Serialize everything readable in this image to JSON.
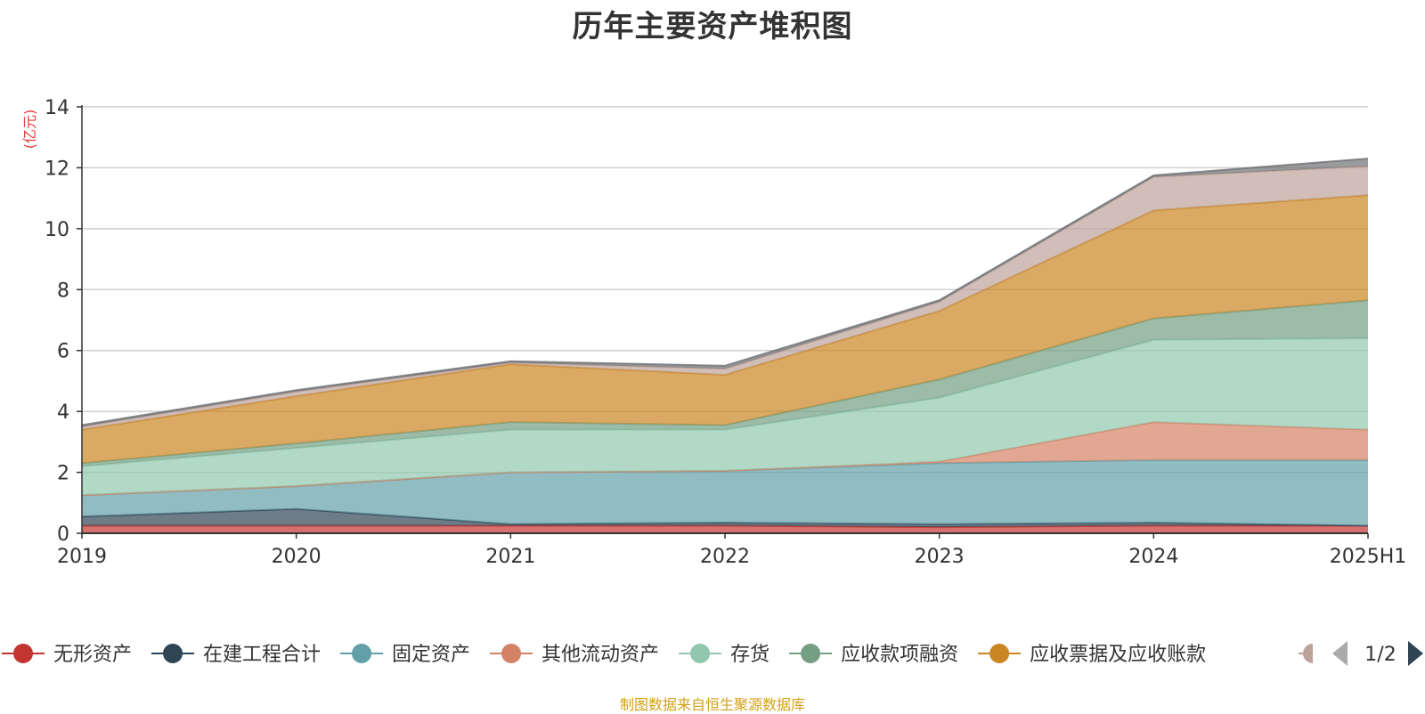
{
  "title": "历年主要资产堆积图",
  "footer": "制图数据来自恒生聚源数据库",
  "chart_data": {
    "type": "area",
    "stacked": true,
    "unit_label": "(亿元)",
    "categories": [
      "2019",
      "2020",
      "2021",
      "2022",
      "2023",
      "2024",
      "2025H1"
    ],
    "ylim": [
      0,
      14
    ],
    "yticks": [
      0,
      2,
      4,
      6,
      8,
      10,
      12,
      14
    ],
    "grid": true,
    "series": [
      {
        "name": "无形资产",
        "color": "#c23531",
        "values": [
          0.25,
          0.25,
          0.25,
          0.25,
          0.2,
          0.25,
          0.25
        ]
      },
      {
        "name": "在建工程合计",
        "color": "#2f4554",
        "values": [
          0.3,
          0.55,
          0.05,
          0.1,
          0.1,
          0.1,
          0.0
        ]
      },
      {
        "name": "固定资产",
        "color": "#61a0a8",
        "values": [
          0.7,
          0.75,
          1.7,
          1.7,
          2.0,
          2.05,
          2.15
        ]
      },
      {
        "name": "其他流动资产",
        "color": "#d48265",
        "values": [
          0.0,
          0.0,
          0.0,
          0.0,
          0.05,
          1.25,
          1.0
        ]
      },
      {
        "name": "存货",
        "color": "#91c7ae",
        "values": [
          0.95,
          1.25,
          1.4,
          1.35,
          2.1,
          2.7,
          3.0
        ]
      },
      {
        "name": "应收款项融资",
        "color": "#749f83",
        "values": [
          0.1,
          0.15,
          0.25,
          0.15,
          0.6,
          0.7,
          1.25
        ]
      },
      {
        "name": "应收票据及应收账款",
        "color": "#ca8622",
        "values": [
          1.1,
          1.55,
          1.9,
          1.65,
          2.25,
          3.55,
          3.45
        ]
      },
      {
        "name": "",
        "color": "#bda29a",
        "values": [
          0.1,
          0.15,
          0.05,
          0.2,
          0.3,
          1.1,
          0.95
        ]
      },
      {
        "name": "",
        "color": "#6e7074",
        "values": [
          0.05,
          0.05,
          0.05,
          0.1,
          0.05,
          0.05,
          0.25
        ]
      }
    ],
    "legend_position": "bottom",
    "legend_page": "1/2"
  }
}
